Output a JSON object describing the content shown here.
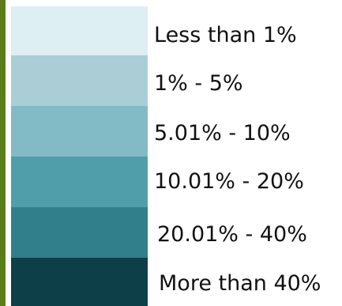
{
  "legend": {
    "side_bar_color": "#5a7d1a",
    "items": [
      {
        "label": "Less than 1%",
        "color": "#ddeff3"
      },
      {
        "label": "1% - 5%",
        "color": "#aacdd6"
      },
      {
        "label": "5.01% - 10%",
        "color": "#82bac6"
      },
      {
        "label": "10.01% - 20%",
        "color": "#4f9ea9"
      },
      {
        "label": "20.01% - 40%",
        "color": "#307f8b"
      },
      {
        "label": "More than 40%",
        "color": "#0c3f48"
      }
    ]
  }
}
